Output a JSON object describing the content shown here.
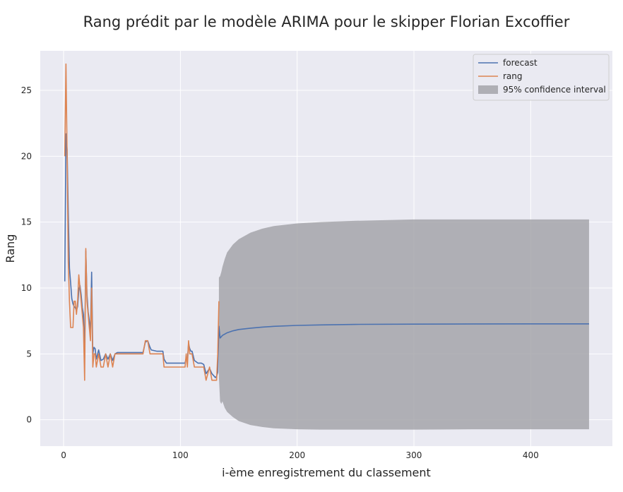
{
  "chart_data": {
    "type": "line",
    "title": "Rang prédit par le modèle ARIMA pour le skipper Florian Excoffier",
    "xlabel": "i-ème enregistrement du classement",
    "ylabel": "Rang",
    "xlim": [
      -20,
      470
    ],
    "ylim": [
      -2,
      28
    ],
    "xticks": [
      0,
      100,
      200,
      300,
      400
    ],
    "yticks": [
      0,
      5,
      10,
      15,
      20,
      25
    ],
    "grid": true,
    "legend_position": "top-right",
    "colors": {
      "background": "#EAEAF2",
      "grid": "#FFFFFF",
      "forecast": "#4C72B0",
      "rang": "#DD8452",
      "confidence": "#A0A0A5"
    },
    "series": [
      {
        "name": "rang",
        "x": [
          1,
          2,
          3,
          4,
          5,
          6,
          7,
          8,
          9,
          10,
          11,
          12,
          13,
          14,
          15,
          16,
          17,
          18,
          19,
          20,
          21,
          22,
          23,
          24,
          25,
          26,
          27,
          28,
          30,
          32,
          34,
          36,
          38,
          40,
          42,
          44,
          46,
          50,
          55,
          60,
          65,
          68,
          70,
          72,
          74,
          75,
          80,
          85,
          86,
          88,
          90,
          95,
          100,
          104,
          105,
          106,
          107,
          108,
          109,
          110,
          112,
          115,
          118,
          120,
          122,
          125,
          127,
          130,
          131,
          132,
          133
        ],
        "y": [
          20,
          27,
          20,
          12,
          9,
          7,
          7,
          7,
          9,
          9,
          8,
          9,
          11,
          10,
          9,
          8,
          7,
          3,
          13,
          9,
          8,
          7,
          6,
          10,
          4,
          5,
          5,
          4,
          5,
          4,
          4,
          5,
          4,
          5,
          4,
          5,
          5,
          5,
          5,
          5,
          5,
          5,
          6,
          6,
          5,
          5,
          5,
          5,
          4,
          4,
          4,
          4,
          4,
          4,
          5,
          4,
          6,
          5,
          5,
          5,
          4,
          4,
          4,
          4,
          3,
          4,
          3,
          3,
          3,
          5,
          9
        ]
      },
      {
        "name": "forecast",
        "x": [
          1,
          2,
          3,
          4,
          5,
          6,
          7,
          8,
          9,
          10,
          11,
          12,
          13,
          14,
          15,
          16,
          17,
          18,
          19,
          20,
          21,
          22,
          23,
          24,
          25,
          26,
          27,
          28,
          30,
          32,
          34,
          36,
          38,
          40,
          42,
          44,
          46,
          50,
          55,
          60,
          65,
          68,
          70,
          72,
          74,
          75,
          80,
          85,
          86,
          88,
          90,
          95,
          100,
          104,
          105,
          106,
          107,
          108,
          109,
          110,
          112,
          115,
          118,
          120,
          122,
          125,
          127,
          130,
          131,
          132,
          133,
          134,
          136,
          138,
          140,
          145,
          150,
          160,
          170,
          180,
          200,
          220,
          250,
          300,
          350,
          400,
          450
        ],
        "y": [
          10.5,
          21.7,
          20.5,
          15.6,
          11.5,
          10.4,
          9.2,
          8.8,
          8.6,
          8.5,
          8.3,
          8.6,
          9.8,
          10.2,
          9.5,
          8.5,
          8.0,
          4.7,
          12.8,
          9.5,
          8.2,
          7.5,
          6.6,
          11.2,
          5.0,
          5.5,
          5.4,
          4.6,
          5.3,
          4.5,
          4.6,
          5.0,
          4.6,
          5.0,
          4.5,
          5.0,
          5.1,
          5.1,
          5.1,
          5.1,
          5.1,
          5.1,
          5.9,
          6.0,
          5.5,
          5.3,
          5.2,
          5.2,
          4.6,
          4.3,
          4.3,
          4.3,
          4.3,
          4.3,
          4.7,
          4.5,
          5.8,
          5.4,
          5.2,
          5.2,
          4.5,
          4.3,
          4.3,
          4.2,
          3.5,
          3.9,
          3.5,
          3.2,
          3.3,
          3.6,
          7.1,
          6.2,
          6.4,
          6.5,
          6.6,
          6.75,
          6.85,
          6.95,
          7.03,
          7.09,
          7.16,
          7.2,
          7.24,
          7.26,
          7.27,
          7.28,
          7.28
        ]
      }
    ],
    "confidence_interval": {
      "name": "95% confidence interval",
      "x": [
        133,
        134,
        135,
        136,
        138,
        140,
        145,
        150,
        160,
        170,
        180,
        200,
        220,
        250,
        300,
        350,
        400,
        450
      ],
      "upper": [
        10.8,
        10.9,
        11.2,
        11.6,
        12.2,
        12.7,
        13.3,
        13.7,
        14.2,
        14.5,
        14.7,
        14.9,
        15.0,
        15.1,
        15.2,
        15.2,
        15.2,
        15.2
      ],
      "lower": [
        3.2,
        1.4,
        1.2,
        1.4,
        0.9,
        0.6,
        0.2,
        -0.1,
        -0.4,
        -0.55,
        -0.65,
        -0.72,
        -0.75,
        -0.75,
        -0.75,
        -0.72,
        -0.72,
        -0.72
      ]
    }
  }
}
